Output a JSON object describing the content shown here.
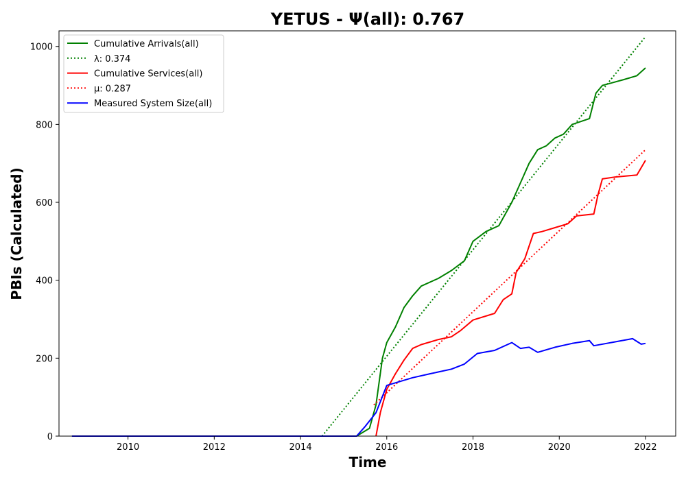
{
  "chart_data": {
    "type": "line",
    "title": "YETUS -  Ψ(all): 0.767",
    "xlabel": "Time",
    "ylabel": "PBIs (Calculated)",
    "xlim": [
      2008.4,
      2022.7
    ],
    "ylim": [
      0,
      1040
    ],
    "xticks": [
      2010,
      2012,
      2014,
      2016,
      2018,
      2020,
      2022
    ],
    "yticks": [
      0,
      200,
      400,
      600,
      800,
      1000
    ],
    "grid": false,
    "legend_position": "top-left",
    "series": [
      {
        "name": "Cumulative Arrivals(all)",
        "color": "#008000",
        "style": "solid",
        "points": [
          [
            2008.7,
            0
          ],
          [
            2015.3,
            0
          ],
          [
            2015.6,
            20
          ],
          [
            2015.75,
            80
          ],
          [
            2015.9,
            200
          ],
          [
            2016.0,
            240
          ],
          [
            2016.2,
            280
          ],
          [
            2016.4,
            330
          ],
          [
            2016.6,
            360
          ],
          [
            2016.8,
            385
          ],
          [
            2017.2,
            405
          ],
          [
            2017.5,
            425
          ],
          [
            2017.8,
            450
          ],
          [
            2018.0,
            500
          ],
          [
            2018.3,
            525
          ],
          [
            2018.6,
            540
          ],
          [
            2018.9,
            600
          ],
          [
            2019.1,
            650
          ],
          [
            2019.3,
            700
          ],
          [
            2019.5,
            735
          ],
          [
            2019.7,
            745
          ],
          [
            2019.9,
            765
          ],
          [
            2020.1,
            775
          ],
          [
            2020.3,
            800
          ],
          [
            2020.7,
            815
          ],
          [
            2020.85,
            880
          ],
          [
            2021.0,
            900
          ],
          [
            2021.5,
            915
          ],
          [
            2021.8,
            925
          ],
          [
            2022.0,
            945
          ]
        ]
      },
      {
        "name": "λ: 0.374",
        "color": "#008000",
        "style": "dotted",
        "points": [
          [
            2014.5,
            0
          ],
          [
            2022.0,
            1025
          ]
        ]
      },
      {
        "name": "Cumulative Services(all)",
        "color": "#ff0000",
        "style": "solid",
        "points": [
          [
            2015.75,
            0
          ],
          [
            2015.85,
            60
          ],
          [
            2016.0,
            120
          ],
          [
            2016.2,
            160
          ],
          [
            2016.4,
            195
          ],
          [
            2016.6,
            225
          ],
          [
            2016.8,
            235
          ],
          [
            2017.2,
            248
          ],
          [
            2017.5,
            255
          ],
          [
            2017.7,
            270
          ],
          [
            2018.0,
            298
          ],
          [
            2018.5,
            315
          ],
          [
            2018.7,
            350
          ],
          [
            2018.9,
            365
          ],
          [
            2019.0,
            420
          ],
          [
            2019.2,
            455
          ],
          [
            2019.4,
            520
          ],
          [
            2019.6,
            525
          ],
          [
            2019.9,
            535
          ],
          [
            2020.2,
            545
          ],
          [
            2020.4,
            565
          ],
          [
            2020.8,
            570
          ],
          [
            2020.9,
            620
          ],
          [
            2021.0,
            660
          ],
          [
            2021.3,
            665
          ],
          [
            2021.8,
            670
          ],
          [
            2022.0,
            708
          ]
        ]
      },
      {
        "name": "μ: 0.287",
        "color": "#ff0000",
        "style": "dotted",
        "points": [
          [
            2015.7,
            80
          ],
          [
            2022.0,
            735
          ]
        ]
      },
      {
        "name": "Measured System Size(all)",
        "color": "#0000ff",
        "style": "solid",
        "points": [
          [
            2008.7,
            0
          ],
          [
            2015.3,
            0
          ],
          [
            2015.5,
            25
          ],
          [
            2015.75,
            60
          ],
          [
            2016.0,
            130
          ],
          [
            2016.3,
            140
          ],
          [
            2016.6,
            150
          ],
          [
            2017.0,
            160
          ],
          [
            2017.5,
            172
          ],
          [
            2017.8,
            185
          ],
          [
            2018.1,
            212
          ],
          [
            2018.5,
            220
          ],
          [
            2018.9,
            240
          ],
          [
            2019.1,
            225
          ],
          [
            2019.3,
            228
          ],
          [
            2019.5,
            215
          ],
          [
            2019.9,
            228
          ],
          [
            2020.3,
            238
          ],
          [
            2020.7,
            245
          ],
          [
            2020.8,
            232
          ],
          [
            2021.2,
            240
          ],
          [
            2021.7,
            250
          ],
          [
            2021.9,
            236
          ],
          [
            2022.0,
            238
          ]
        ]
      }
    ]
  }
}
